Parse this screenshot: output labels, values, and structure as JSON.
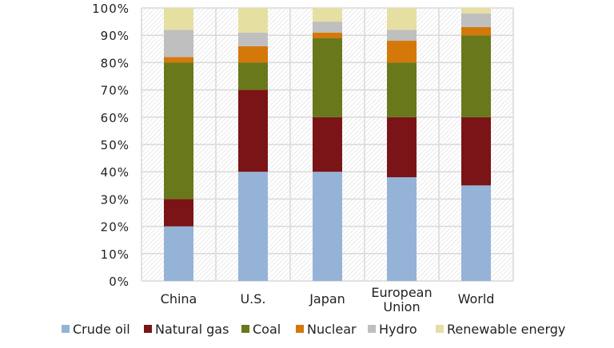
{
  "chart_data": {
    "type": "bar",
    "stacked": true,
    "categories": [
      "China",
      "U.S.",
      "Japan",
      "European Union",
      "World"
    ],
    "category_lines": [
      [
        "China"
      ],
      [
        "U.S."
      ],
      [
        "Japan"
      ],
      [
        "European",
        "Union"
      ],
      [
        "World"
      ]
    ],
    "series": [
      {
        "name": "Crude oil",
        "color": "#95b3d7",
        "values": [
          20,
          40,
          40,
          38,
          35
        ]
      },
      {
        "name": "Natural gas",
        "color": "#7b1416",
        "values": [
          10,
          30,
          20,
          22,
          25
        ]
      },
      {
        "name": "Coal",
        "color": "#6a781c",
        "values": [
          50,
          10,
          29,
          20,
          30
        ]
      },
      {
        "name": "Nuclear",
        "color": "#d4780a",
        "values": [
          2,
          6,
          2,
          8,
          3
        ]
      },
      {
        "name": "Hydro",
        "color": "#bfbfbf",
        "values": [
          10,
          5,
          4,
          4,
          5
        ]
      },
      {
        "name": "Renewable energy",
        "color": "#e6dfa2",
        "values": [
          8,
          9,
          5,
          8,
          2
        ]
      }
    ],
    "ylim": [
      0,
      100
    ],
    "yticks": [
      "0%",
      "10%",
      "20%",
      "30%",
      "40%",
      "50%",
      "60%",
      "70%",
      "80%",
      "90%",
      "100%"
    ],
    "grid": true,
    "legend": "bottom",
    "title": "",
    "xlabel": "",
    "ylabel": ""
  }
}
